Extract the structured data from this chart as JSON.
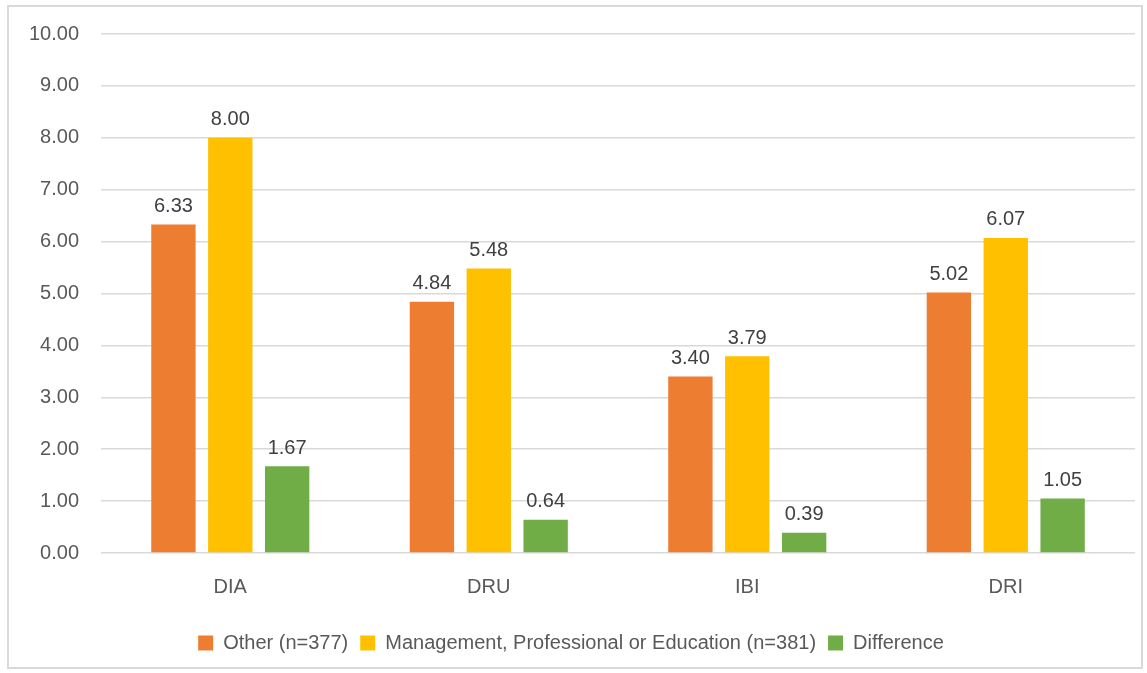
{
  "chart_data": {
    "type": "bar",
    "categories": [
      "DIA",
      "DRU",
      "IBI",
      "DRI"
    ],
    "series": [
      {
        "name": "Other (n=377)",
        "color": "#ed7d31",
        "values": [
          6.33,
          4.84,
          3.4,
          5.02
        ],
        "value_labels": [
          "6.33",
          "4.84",
          "3.40",
          "5.02"
        ]
      },
      {
        "name": "Management, Professional or Education (n=381)",
        "color": "#ffc000",
        "values": [
          8.0,
          5.48,
          3.79,
          6.07
        ],
        "value_labels": [
          "8.00",
          "5.48",
          "3.79",
          "6.07"
        ]
      },
      {
        "name": "Difference",
        "color": "#70ad47",
        "values": [
          1.67,
          0.64,
          0.39,
          1.05
        ],
        "value_labels": [
          "1.67",
          "0.64",
          "0.39",
          "1.05"
        ]
      }
    ],
    "ylim": [
      0,
      10
    ],
    "yticks": [
      {
        "value": 0,
        "label": "0.00"
      },
      {
        "value": 1,
        "label": "1.00"
      },
      {
        "value": 2,
        "label": "2.00"
      },
      {
        "value": 3,
        "label": "3.00"
      },
      {
        "value": 4,
        "label": "4.00"
      },
      {
        "value": 5,
        "label": "5.00"
      },
      {
        "value": 6,
        "label": "6.00"
      },
      {
        "value": 7,
        "label": "7.00"
      },
      {
        "value": 8,
        "label": "8.00"
      },
      {
        "value": 9,
        "label": "9.00"
      },
      {
        "value": 10,
        "label": "10.00"
      }
    ],
    "grid": "y",
    "legend": "bottom"
  }
}
